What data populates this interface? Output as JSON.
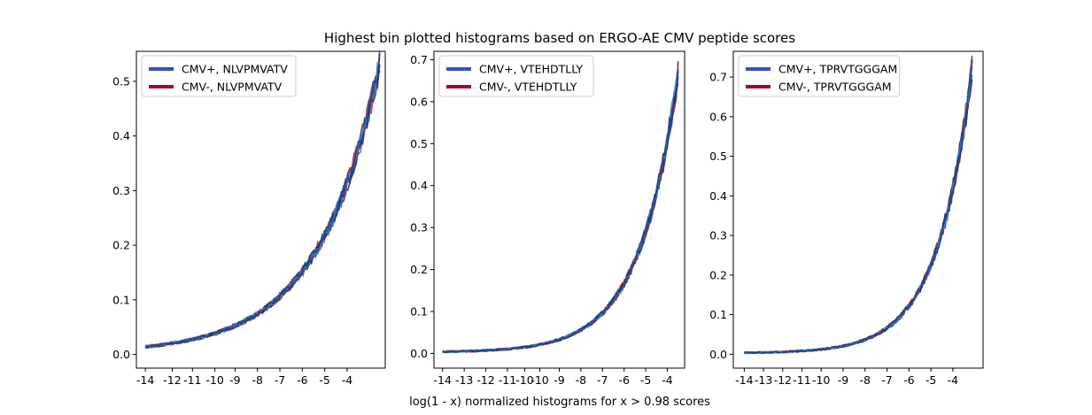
{
  "figure": {
    "title": "Highest bin plotted histograms based on ERGO-AE CMV peptide scores",
    "xlabel": "log(1 - x) normalized histograms for x > 0.98 scores"
  },
  "colors": {
    "pos_lines": [
      "#1f4e9e",
      "#2a68b5",
      "#16306e",
      "#3b82c4",
      "#1a3f86"
    ],
    "neg_lines": [
      "#b0131f",
      "#d42a2a",
      "#8a0e1a",
      "#e0453a",
      "#9e1b2c"
    ],
    "pos_legend": "#3a4fc2",
    "neg_legend": "#a3052a"
  },
  "chart_data": [
    {
      "type": "line",
      "x_ticks": [
        "-14",
        "-12",
        "-11",
        "-10",
        "-9",
        "-8",
        "-7",
        "-6",
        "-5",
        "-4"
      ],
      "x_tick_positions": [
        -14,
        -12.8,
        -11.9,
        -10.9,
        -10,
        -9,
        -8,
        -7,
        -6,
        -5
      ],
      "xlim": [
        -14.4,
        -3.3
      ],
      "y_ticks": [
        "0.0",
        "0.1",
        "0.2",
        "0.3",
        "0.4",
        "0.5"
      ],
      "ylim": [
        -0.025,
        0.555
      ],
      "x_start": -14,
      "x_end": -3.55,
      "peak": 0.53,
      "decay": 0.365,
      "series": [
        {
          "name": "CMV+, NLVPMVATV",
          "group": "pos"
        },
        {
          "name": "CMV-, NLVPMVATV",
          "group": "neg"
        }
      ]
    },
    {
      "type": "line",
      "x_ticks": [
        "-14",
        "-13",
        "-12",
        "-11",
        "-10",
        "-10",
        "-9",
        "-8",
        "-7",
        "-6",
        "-5",
        "-4"
      ],
      "x_tick_positions": [
        -14,
        -13,
        -12,
        -11,
        -10.2,
        -9.5,
        -8.6,
        -7.6,
        -6.6,
        -5.6,
        -4.6,
        -3.6
      ],
      "xlim": [
        -14.4,
        -2.8
      ],
      "y_ticks": [
        "0.0",
        "0.1",
        "0.2",
        "0.3",
        "0.4",
        "0.5",
        "0.6",
        "0.7"
      ],
      "ylim": [
        -0.035,
        0.72
      ],
      "x_start": -14,
      "x_end": -3.1,
      "peak": 0.67,
      "decay": 0.56,
      "series": [
        {
          "name": "CMV+, VTEHDTLLY",
          "group": "pos"
        },
        {
          "name": "CMV-, VTEHDTLLY",
          "group": "neg"
        }
      ]
    },
    {
      "type": "line",
      "x_ticks": [
        "-14",
        "-13",
        "-12",
        "-11",
        "-10",
        "-9",
        "-8",
        "-7",
        "-6",
        "-5",
        "-4"
      ],
      "x_tick_positions": [
        -14,
        -13.3,
        -12.6,
        -11.9,
        -11.2,
        -10.4,
        -9.6,
        -8.8,
        -8,
        -7.2,
        -6.4
      ],
      "xlim": [
        -14.4,
        -5.3
      ],
      "y_ticks": [
        "0.0",
        "0.1",
        "0.2",
        "0.3",
        "0.4",
        "0.5",
        "0.6",
        "0.7"
      ],
      "ylim": [
        -0.035,
        0.765
      ],
      "x_start": -14,
      "x_end": -5.7,
      "peak": 0.72,
      "decay": 0.78,
      "series": [
        {
          "name": "CMV+, TPRVTGGGAM",
          "group": "pos"
        },
        {
          "name": "CMV-, TPRVTGGGAM",
          "group": "neg"
        }
      ]
    }
  ]
}
